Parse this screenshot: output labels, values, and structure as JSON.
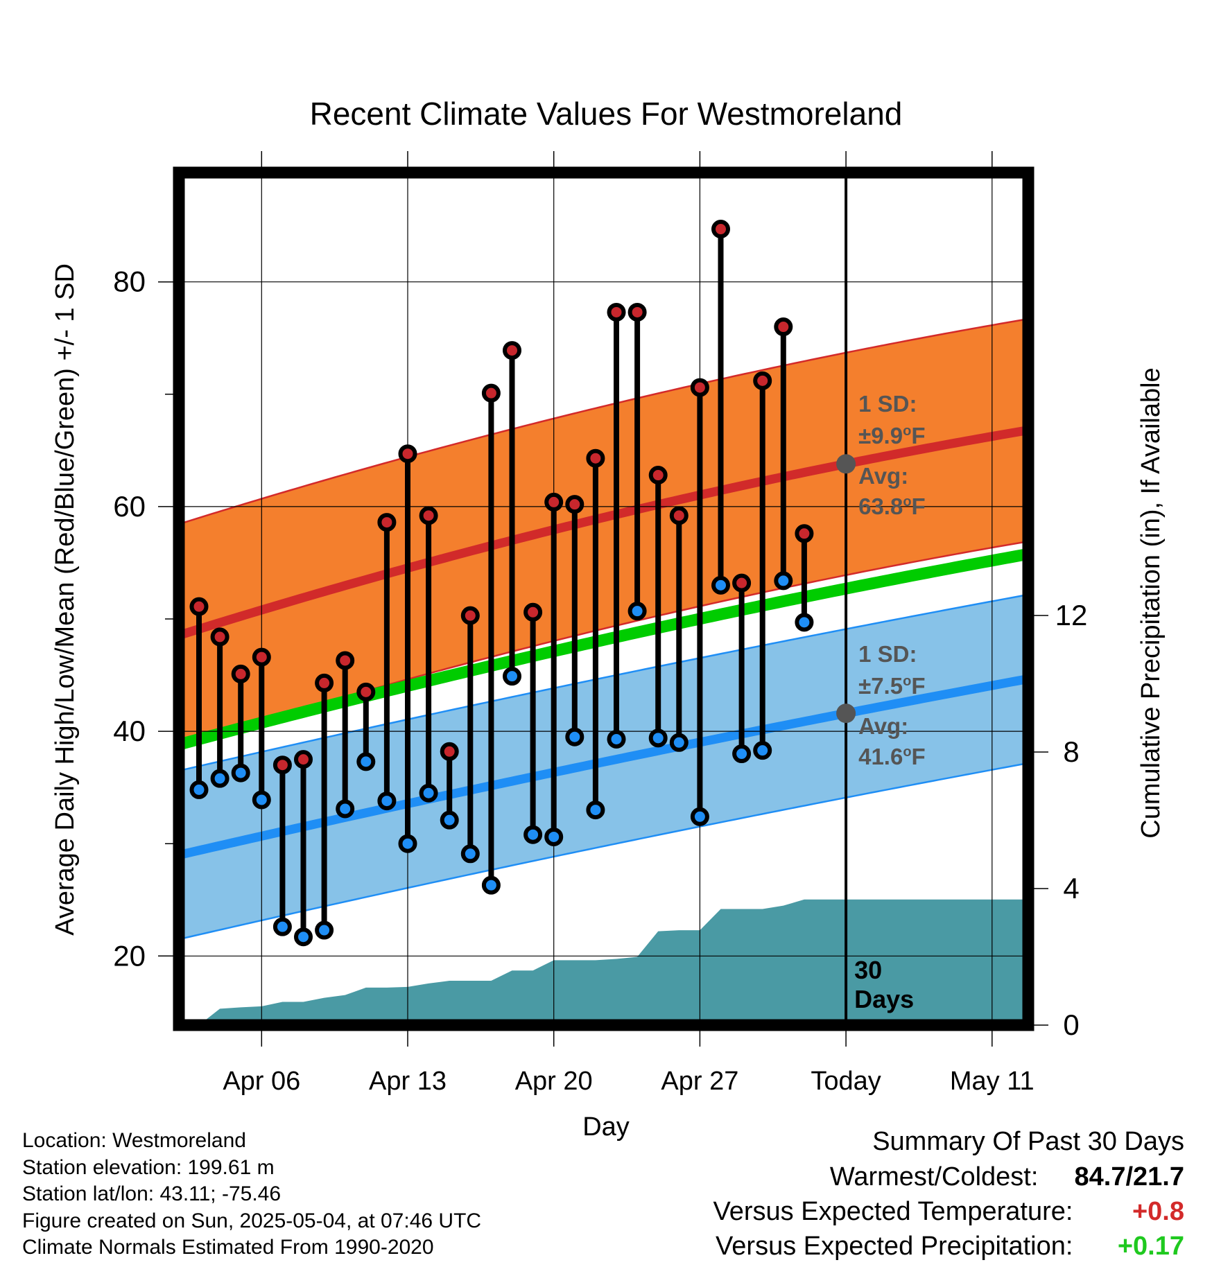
{
  "chart_data": {
    "type": "line",
    "title": "Recent Climate Values For Westmoreland",
    "xlabel": "Day",
    "ylabel": "Average Daily High/Low/Mean (Red/Blue/Green) +/- 1 SD",
    "ylabel_right": "Cumulative Precipitation (in), If Available",
    "x_ticks": [
      "Apr 06",
      "Apr 13",
      "Apr 20",
      "Apr 27",
      "Today",
      "May 11"
    ],
    "y_ticks": [
      "20",
      "40",
      "60",
      "80"
    ],
    "y2_ticks": [
      "0",
      "4",
      "8",
      "12"
    ],
    "ylim": [
      14,
      89
    ],
    "y2lim": [
      0,
      30
    ],
    "grid": true,
    "days": [
      "Apr 03",
      "Apr 04",
      "Apr 05",
      "Apr 06",
      "Apr 07",
      "Apr 08",
      "Apr 09",
      "Apr 10",
      "Apr 11",
      "Apr 12",
      "Apr 13",
      "Apr 14",
      "Apr 15",
      "Apr 16",
      "Apr 17",
      "Apr 18",
      "Apr 19",
      "Apr 20",
      "Apr 21",
      "Apr 22",
      "Apr 23",
      "Apr 24",
      "Apr 25",
      "Apr 26",
      "Apr 27",
      "Apr 28",
      "Apr 29",
      "Apr 30",
      "May 01",
      "May 02",
      "May 03"
    ],
    "daily_high": [
      51.1,
      48.4,
      45.1,
      46.6,
      37.0,
      37.5,
      44.3,
      46.3,
      43.5,
      58.6,
      64.7,
      59.2,
      38.2,
      50.3,
      70.1,
      73.9,
      50.6,
      60.4,
      60.2,
      64.3,
      77.3,
      77.3,
      62.8,
      59.2,
      70.6,
      84.7,
      53.2,
      71.2,
      76.0,
      57.6,
      null
    ],
    "daily_low": [
      34.8,
      35.8,
      36.3,
      33.9,
      22.6,
      21.7,
      22.3,
      33.1,
      37.3,
      33.8,
      30.0,
      34.5,
      32.1,
      29.1,
      26.3,
      44.9,
      30.8,
      30.6,
      39.5,
      33.0,
      39.3,
      50.7,
      39.4,
      39.0,
      32.4,
      53.0,
      38.0,
      38.3,
      53.4,
      49.7,
      null
    ],
    "normal_high_avg": [
      49.1,
      63.8,
      67.2
    ],
    "normal_high_sd": 9.9,
    "normal_low_avg": [
      29.4,
      41.6,
      45.1
    ],
    "normal_low_sd": 7.5,
    "normal_mean": [
      39.3,
      52.7,
      56.2
    ],
    "normal_x": [
      "Apr 03",
      "Today",
      "May 14"
    ],
    "cumulative_precip": [
      0.0,
      0.48,
      0.52,
      0.55,
      0.68,
      0.68,
      0.8,
      0.88,
      1.1,
      1.1,
      1.12,
      1.22,
      1.3,
      1.3,
      1.3,
      1.6,
      1.6,
      1.9,
      1.9,
      1.9,
      1.94,
      2.0,
      2.75,
      2.78,
      2.78,
      3.4,
      3.4,
      3.4,
      3.5,
      3.68,
      3.68
    ],
    "high_annotation": {
      "sd_label": "1 SD:",
      "sd_value": "±9.9",
      "unit": "F",
      "avg_label": "Avg:",
      "avg_value": "63.8"
    },
    "low_annotation": {
      "sd_label": "1 SD:",
      "sd_value": "±7.5",
      "unit": "F",
      "avg_label": "Avg:",
      "avg_value": "41.6"
    },
    "today_label": [
      "30",
      "Days"
    ],
    "colors": {
      "high_band": "#f47f2d",
      "high_line": "#d12a2a",
      "low_band": "#87c2e8",
      "low_line": "#1f8ef5",
      "mean_line": "#00cc00",
      "precip": "#4a9aa4",
      "high_dot": "#c8272d",
      "low_dot": "#1f8ef5",
      "annotation": "#555555"
    }
  },
  "meta": {
    "location": "Location: Westmoreland",
    "elevation": "Station elevation: 199.61 m",
    "latlon": "Station lat/lon: 43.11; -75.46",
    "created": "Figure created on Sun, 2025-05-04, at 07:46 UTC",
    "normals": "Climate Normals Estimated From 1990-2020"
  },
  "summary": {
    "title": "Summary Of Past 30 Days",
    "warm_label": "Warmest/Coldest:",
    "warm_value": "84.7/21.7",
    "temp_label": "Versus Expected Temperature:",
    "temp_value": "+0.8",
    "precip_label": "Versus Expected Precipitation:",
    "precip_value": "+0.17"
  }
}
